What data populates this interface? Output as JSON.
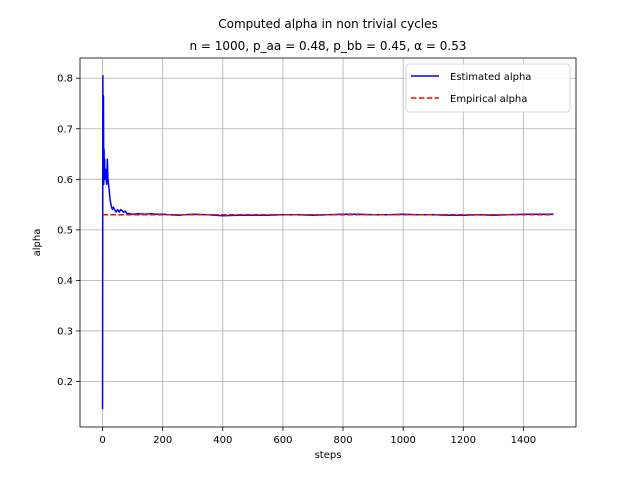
{
  "chart_data": {
    "type": "line",
    "title": "Computed alpha in non trivial cycles",
    "subtitle": "n = 1000, p_aa = 0.48, p_bb = 0.45, α = 0.53",
    "xlabel": "steps",
    "ylabel": "alpha",
    "xlim": [
      -75,
      1575
    ],
    "ylim": [
      0.11,
      0.84
    ],
    "xticks": [
      0,
      200,
      400,
      600,
      800,
      1000,
      1200,
      1400
    ],
    "yticks": [
      0.2,
      0.3,
      0.4,
      0.5,
      0.6,
      0.7,
      0.8
    ],
    "grid": true,
    "legend_position": "top-right",
    "series": [
      {
        "name": "Estimated alpha",
        "color": "#0000ff",
        "style": "solid",
        "x": [
          0,
          1,
          2,
          3,
          4,
          5,
          6,
          7,
          8,
          10,
          12,
          14,
          16,
          18,
          20,
          22,
          25,
          28,
          30,
          33,
          36,
          40,
          45,
          50,
          55,
          60,
          65,
          70,
          75,
          80,
          90,
          100,
          120,
          140,
          160,
          180,
          200,
          250,
          300,
          350,
          400,
          450,
          500,
          550,
          600,
          650,
          700,
          750,
          800,
          850,
          900,
          950,
          1000,
          1050,
          1100,
          1150,
          1200,
          1250,
          1300,
          1350,
          1400,
          1450,
          1500
        ],
        "y": [
          0.145,
          0.805,
          0.6,
          0.765,
          0.59,
          0.66,
          0.61,
          0.64,
          0.6,
          0.62,
          0.6,
          0.59,
          0.64,
          0.6,
          0.59,
          0.58,
          0.56,
          0.55,
          0.545,
          0.54,
          0.545,
          0.54,
          0.535,
          0.54,
          0.535,
          0.54,
          0.538,
          0.535,
          0.537,
          0.533,
          0.532,
          0.531,
          0.532,
          0.531,
          0.532,
          0.531,
          0.531,
          0.529,
          0.531,
          0.53,
          0.528,
          0.529,
          0.529,
          0.529,
          0.53,
          0.53,
          0.529,
          0.53,
          0.531,
          0.531,
          0.53,
          0.53,
          0.531,
          0.53,
          0.53,
          0.529,
          0.529,
          0.53,
          0.529,
          0.53,
          0.531,
          0.531,
          0.531
        ]
      },
      {
        "name": "Empirical alpha",
        "color": "#ff0000",
        "style": "dashed",
        "x": [
          0,
          1500
        ],
        "y": [
          0.53,
          0.53
        ]
      }
    ]
  }
}
